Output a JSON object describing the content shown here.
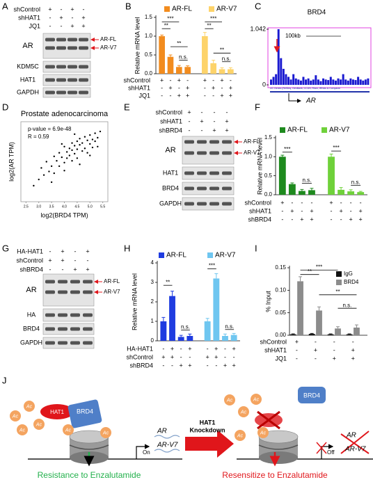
{
  "panel_labels": [
    "A",
    "B",
    "C",
    "D",
    "E",
    "F",
    "G",
    "H",
    "I",
    "J"
  ],
  "blots": [
    {
      "conditions": [
        {
          "name": "shControl",
          "marks": [
            "+",
            "-",
            "+",
            "-"
          ]
        },
        {
          "name": "shHAT1",
          "marks": [
            "-",
            "+",
            "-",
            "+"
          ]
        },
        {
          "name": "JQ1",
          "marks": [
            "-",
            "-",
            "+",
            "+"
          ]
        }
      ],
      "bands": [
        "AR",
        "KDM5C",
        "HAT1",
        "GAPDH"
      ],
      "arrows": [
        "AR-FL",
        "AR-V7"
      ]
    },
    {
      "conditions": [
        {
          "name": "shControl",
          "marks": [
            "+",
            "-",
            "-",
            "-"
          ]
        },
        {
          "name": "shHAT1",
          "marks": [
            "-",
            "+",
            "-",
            "+"
          ]
        },
        {
          "name": "shBRD4",
          "marks": [
            "-",
            "-",
            "+",
            "+"
          ]
        }
      ],
      "bands": [
        "AR",
        "HAT1",
        "BRD4",
        "GAPDH"
      ],
      "arrows": [
        "AR-FL",
        "AR-V7"
      ]
    },
    {
      "conditions": [
        {
          "name": "HA-HAT1",
          "marks": [
            "-",
            "+",
            "-",
            "+"
          ]
        },
        {
          "name": "shControl",
          "marks": [
            "+",
            "+",
            "-",
            "-"
          ]
        },
        {
          "name": "shBRD4",
          "marks": [
            "-",
            "-",
            "+",
            "+"
          ]
        }
      ],
      "bands": [
        "AR",
        "HA",
        "BRD4",
        "GAPDH"
      ],
      "arrows": [
        "AR-FL",
        "AR-V7"
      ]
    }
  ],
  "genome_track": {
    "title": "BRD4",
    "ylim": [
      0,
      1.042
    ],
    "yticks": [
      0,
      1.042
    ],
    "scale": "100kb",
    "gene": "AR",
    "footer": "UC Genes (RefSeq, GenBank, CCDS, Rfam, tRNAs & Comparat",
    "signal": [
      0.1,
      0.15,
      0.2,
      1.042,
      0.5,
      0.3,
      0.2,
      0.15,
      0.1,
      0.2,
      0.12,
      0.1,
      0.08,
      0.15,
      0.1,
      0.12,
      0.08,
      0.1,
      0.18,
      0.1,
      0.07,
      0.12,
      0.1,
      0.09,
      0.15,
      0.1,
      0.08,
      0.12,
      0.1,
      0.2,
      0.1,
      0.08,
      0.12,
      0.1,
      0.09,
      0.15,
      0.1,
      0.08,
      0.1,
      0.12
    ]
  },
  "chart_data": [
    {
      "type": "bar",
      "ylabel": "Relative mRNA level",
      "legend": "top",
      "ylim": [
        0,
        1.5
      ],
      "yticks": [
        {
          "value": 0,
          "label": "0.0"
        },
        0.5,
        {
          "value": 1,
          "label": "1.0"
        },
        1.5
      ],
      "series": [
        {
          "name": "AR-FL",
          "color": "#f28c1e",
          "values": [
            1.0,
            0.45,
            0.18,
            0.18
          ],
          "errors": [
            0.03,
            0.05,
            0.04,
            0.03
          ]
        },
        {
          "name": "AR-V7",
          "color": "#fdd36a",
          "values": [
            1.0,
            0.28,
            0.12,
            0.12
          ],
          "errors": [
            0.1,
            0.08,
            0.04,
            0.04
          ]
        }
      ],
      "conditions": [
        {
          "name": "shControl",
          "marks": [
            "+",
            "-",
            "+",
            "-"
          ]
        },
        {
          "name": "shHAT1",
          "marks": [
            "-",
            "+",
            "-",
            "+"
          ]
        },
        {
          "name": "JQ1",
          "marks": [
            "-",
            "-",
            "+",
            "+"
          ]
        }
      ],
      "significance": [
        "***",
        "**",
        "**",
        "n.s.",
        "***",
        "**",
        "**",
        "n.s."
      ]
    },
    {
      "type": "scatter",
      "title": "Prostate adenocarcinoma",
      "annotations": [
        "p-value = 6.9e-48",
        "R = 0.59"
      ],
      "xlabel": "log2(BRD4 TPM)",
      "ylabel": "log2(AR TPM)",
      "color": "#000000",
      "x": [
        3.0,
        3.1,
        3.2,
        3.3,
        3.4,
        3.5,
        3.6,
        3.6,
        3.7,
        3.8,
        3.8,
        3.9,
        4.0,
        4.0,
        4.1,
        4.1,
        4.2,
        4.2,
        4.3,
        4.3,
        4.3,
        4.4,
        4.4,
        4.5,
        4.5,
        4.5,
        4.6,
        4.6,
        4.7,
        4.7,
        4.8,
        4.8,
        4.9,
        4.9,
        5.0,
        5.0,
        5.1,
        5.1,
        5.2,
        5.2,
        5.3,
        5.4,
        2.8,
        3.5,
        4.0,
        4.6,
        5.0,
        3.9,
        4.4,
        5.3
      ],
      "y": [
        1.5,
        2.8,
        2.0,
        3.5,
        2.4,
        3.0,
        4.1,
        2.2,
        3.6,
        4.5,
        3.0,
        4.0,
        5.2,
        3.4,
        4.6,
        3.9,
        5.0,
        4.2,
        5.6,
        3.6,
        4.8,
        5.3,
        4.4,
        5.8,
        4.9,
        3.9,
        5.4,
        6.1,
        4.7,
        5.6,
        6.3,
        5.0,
        5.9,
        4.5,
        6.5,
        5.5,
        6.0,
        5.1,
        6.7,
        5.8,
        6.2,
        6.9,
        0.8,
        1.2,
        2.5,
        3.2,
        4.2,
        5.5,
        6.6,
        5.2
      ],
      "xlim": [
        2.3,
        5.7
      ],
      "ylim": [
        -1,
        8
      ],
      "xticks": [
        2.5,
        {
          "value": 3,
          "label": "3.0"
        },
        3.5,
        {
          "value": 4,
          "label": "4.0"
        },
        4.5,
        {
          "value": 5,
          "label": "5.0"
        },
        5.5
      ]
    },
    {
      "type": "bar",
      "ylabel": "Relative mRNA level",
      "legend": "top",
      "ylim": [
        0,
        1.5
      ],
      "yticks": [
        {
          "value": 0,
          "label": "0.0"
        },
        0.5,
        {
          "value": 1,
          "label": "1.0"
        },
        1.5
      ],
      "series": [
        {
          "name": "AR-FL",
          "color": "#1e8a1e",
          "values": [
            1.0,
            0.28,
            0.1,
            0.12
          ],
          "errors": [
            0.04,
            0.03,
            0.04,
            0.05
          ]
        },
        {
          "name": "AR-V7",
          "color": "#6fd13a",
          "values": [
            1.0,
            0.13,
            0.09,
            0.07
          ],
          "errors": [
            0.07,
            0.06,
            0.04,
            0.02
          ]
        }
      ],
      "conditions": [
        {
          "name": "shControl",
          "marks": [
            "+",
            "-",
            "-",
            "-"
          ]
        },
        {
          "name": "shHAT1",
          "marks": [
            "-",
            "+",
            "-",
            "+"
          ]
        },
        {
          "name": "shBRD4",
          "marks": [
            "-",
            "-",
            "+",
            "+"
          ]
        }
      ],
      "significance": [
        "***",
        "n.s.",
        "***",
        "n.s."
      ]
    },
    {
      "type": "bar",
      "ylabel": "Relative mRNA level",
      "legend": "top",
      "ylim": [
        0,
        4
      ],
      "yticks": [
        0,
        1,
        2,
        3,
        4
      ],
      "series": [
        {
          "name": "AR-FL",
          "color": "#1f3ce0",
          "values": [
            1.0,
            2.3,
            0.2,
            0.25
          ],
          "errors": [
            0.2,
            0.25,
            0.08,
            0.1
          ]
        },
        {
          "name": "AR-V7",
          "color": "#6fc6f0",
          "values": [
            1.0,
            3.2,
            0.25,
            0.3
          ],
          "errors": [
            0.15,
            0.25,
            0.1,
            0.08
          ]
        }
      ],
      "conditions": [
        {
          "name": "HA-HAT1",
          "marks": [
            "-",
            "+",
            "-",
            "+"
          ]
        },
        {
          "name": "shControl",
          "marks": [
            "+",
            "+",
            "-",
            "-"
          ]
        },
        {
          "name": "shBRD4",
          "marks": [
            "-",
            "-",
            "+",
            "+"
          ]
        }
      ],
      "significance": [
        "**",
        "n.s.",
        "***",
        "n.s."
      ]
    },
    {
      "type": "bar",
      "ylabel": "% Input",
      "legend": "upper right",
      "ylim": [
        0,
        0.15
      ],
      "yticks": [
        {
          "value": 0,
          "label": "0.00"
        },
        0.05,
        {
          "value": 0.1,
          "label": "0.10"
        },
        0.15
      ],
      "series": [
        {
          "name": "IgG",
          "color": "#111111",
          "values": [
            0.002,
            0.003,
            0.002,
            0.002
          ],
          "errors": [
            0.001,
            0.001,
            0.001,
            0.001
          ]
        },
        {
          "name": "BRD4",
          "color": "#8c8c8c",
          "values": [
            0.12,
            0.055,
            0.015,
            0.017
          ],
          "errors": [
            0.01,
            0.008,
            0.004,
            0.006
          ]
        }
      ],
      "conditions": [
        {
          "name": "shControl",
          "marks": [
            "+",
            "-",
            "-",
            "-"
          ]
        },
        {
          "name": "shHAT1",
          "marks": [
            "-",
            "+",
            "-",
            "+"
          ]
        },
        {
          "name": "JQ1",
          "marks": [
            "-",
            "-",
            "+",
            "+"
          ]
        }
      ],
      "significance": [
        "***",
        "**",
        "**",
        "n.s."
      ]
    }
  ],
  "diagram": {
    "acetyl": "Ac",
    "hat1": "HAT1",
    "brd4": "BRD4",
    "on": "On",
    "gene_ar": "AR",
    "gene_v7": "AR-V7",
    "knockdown": [
      "HAT1",
      "Knockdown"
    ],
    "off": "Off",
    "outcome_left": "Resistance to Enzalutamide",
    "outcome_right": "Resensitize to Enzalutamide"
  }
}
